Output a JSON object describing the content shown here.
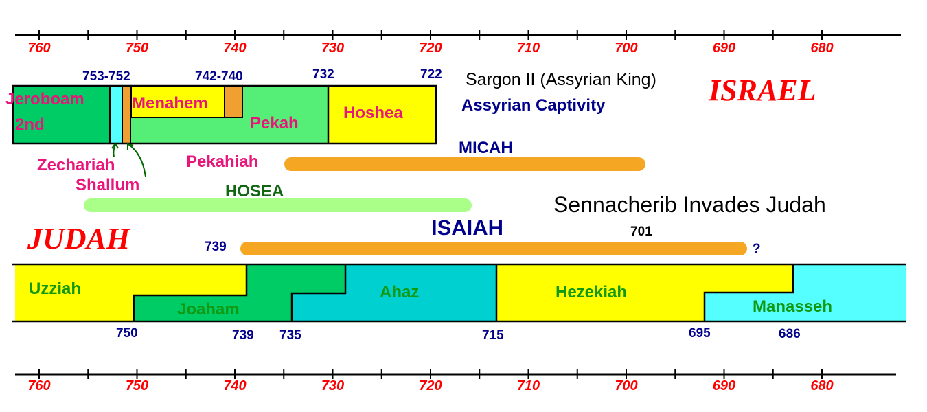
{
  "colors": {
    "axis_label": "#ff0000",
    "year_label": "#00008b",
    "israel_king_text": "#e8157b",
    "judah_king_text": "#119911",
    "yellow": "#ffff00",
    "green": "#00cc66",
    "light_green": "#55ee77",
    "teal": "#00d0d0",
    "cyan": "#55ffff",
    "orange": "#f0a030",
    "micah_bar": "#f5a623",
    "hosea_bar": "#aaff88",
    "isaiah_bar": "#f5a623"
  },
  "axis": {
    "ticks": [
      "760",
      "750",
      "740",
      "730",
      "720",
      "710",
      "700",
      "690",
      "680"
    ]
  },
  "israel": {
    "title": "ISRAEL",
    "year_labels": [
      "753-752",
      "742-740",
      "732",
      "722"
    ],
    "kings": {
      "jeroboam_line1": "Jeroboam",
      "jeroboam_line2": "2nd",
      "menahem": "Menahem",
      "pekah": "Pekah",
      "hoshea": "Hoshea",
      "zechariah": "Zechariah",
      "shallum": "Shallum",
      "pekahiah": "Pekahiah"
    },
    "sargon_note": "Sargon II (Assyrian King)",
    "captivity_note": "Assyrian Captivity"
  },
  "prophets": {
    "micah": "MICAH",
    "hosea": "HOSEA",
    "isaiah": "ISAIAH",
    "isaiah_start": "739",
    "isaiah_end": "?"
  },
  "sennacherib": {
    "note": "Sennacherib Invades Judah",
    "year": "701"
  },
  "judah": {
    "title": "JUDAH",
    "kings": {
      "uzziah": "Uzziah",
      "joaham": "Joaham",
      "ahaz": "Ahaz",
      "hezekiah": "Hezekiah",
      "manasseh": "Manasseh"
    },
    "year_labels": [
      "750",
      "739",
      "735",
      "715",
      "695",
      "686"
    ]
  }
}
